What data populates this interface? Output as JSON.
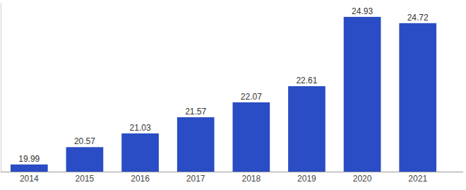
{
  "chart_data": {
    "type": "bar",
    "categories": [
      "2014",
      "2015",
      "2016",
      "2017",
      "2018",
      "2019",
      "2020",
      "2021"
    ],
    "values": [
      19.99,
      20.57,
      21.03,
      21.57,
      22.07,
      22.61,
      24.93,
      24.72
    ],
    "color": "#2a4cc4",
    "ylim": [
      19.75,
      25.4
    ],
    "grid": false,
    "data_labels": true,
    "tick_labels": "x"
  }
}
